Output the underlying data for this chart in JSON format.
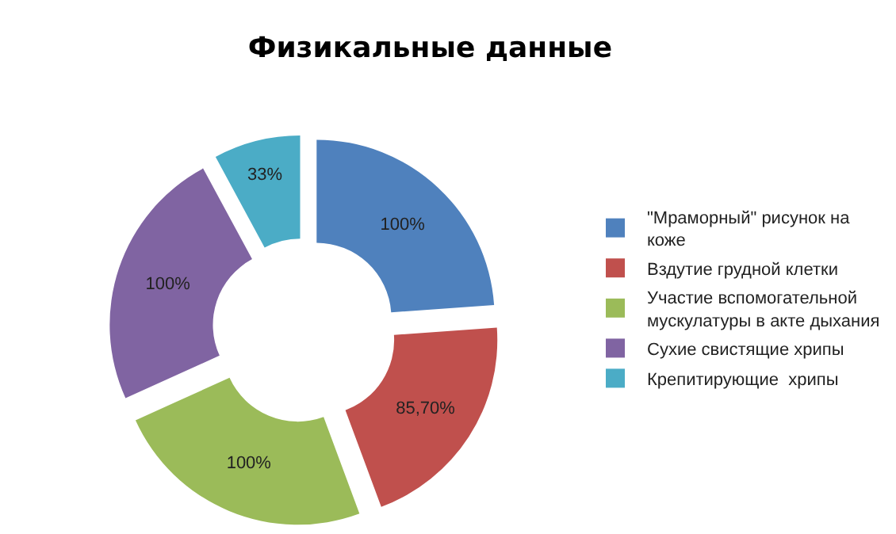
{
  "chart_data": {
    "type": "donut",
    "title": "Физикальные данные",
    "categories": [
      "\"Мраморный\" рисунок на коже",
      "Вздутие грудной клетки",
      "Участие вспомогательной мускулатуры в акте дыхания",
      "Сухие свистящие хрипы",
      "Крепитирующие  хрипы"
    ],
    "values": [
      100,
      85.7,
      100,
      100,
      33
    ],
    "value_labels": [
      "100%",
      "85,70%",
      "100%",
      "100%",
      "33%"
    ],
    "colors": [
      "#4f81bd",
      "#c0504d",
      "#9bbb59",
      "#8064a2",
      "#4bacc6"
    ],
    "legend": "right"
  }
}
